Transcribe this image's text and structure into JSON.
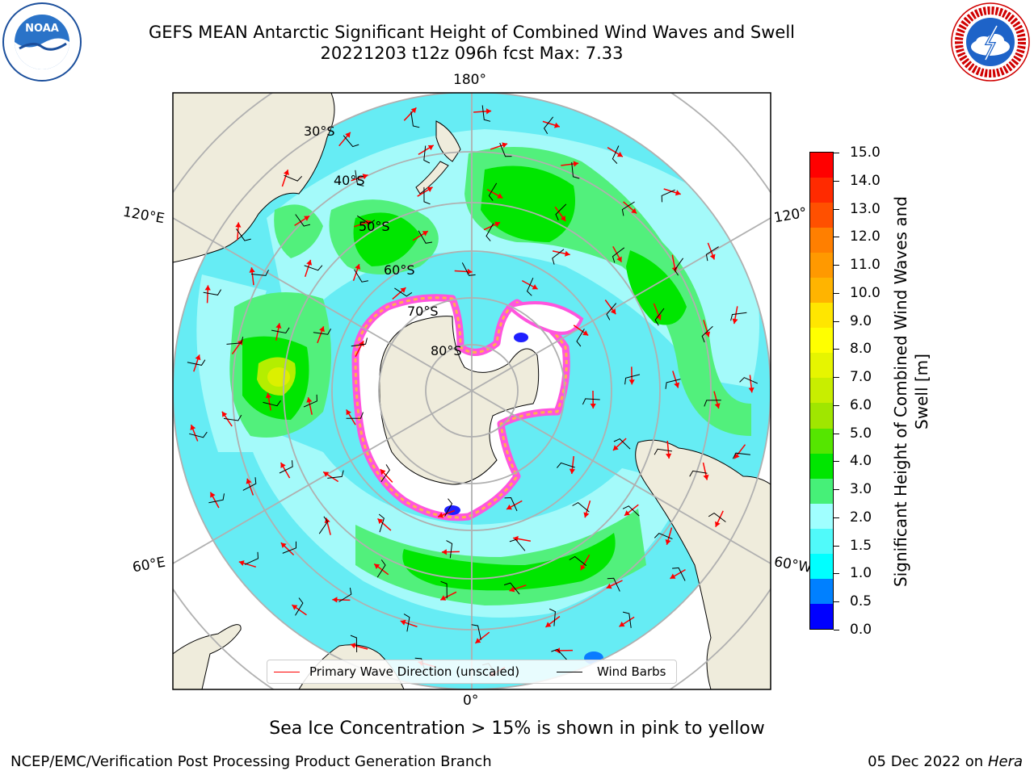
{
  "header": {
    "title_line1": "GEFS MEAN Antarctic Significant Height of Combined Wind Waves and Swell",
    "title_line2": "20221203 t12z 096h fcst   Max: 7.33"
  },
  "logos": {
    "noaa": {
      "text": "NOAA",
      "icon": "noaa-logo-icon"
    },
    "nws": {
      "text": "NATIONAL WEATHER SERVICE",
      "icon": "nws-logo-icon"
    }
  },
  "map": {
    "longitude_labels": {
      "top": "180°",
      "upper_left": "120°E",
      "upper_right": "120°",
      "lower_left": "60°E",
      "lower_right": "60°W",
      "bottom": "0°"
    },
    "latitude_labels": [
      "30°S",
      "40°S",
      "50°S",
      "60°S",
      "70°S",
      "80°S"
    ],
    "colors": {
      "land": "#efecdc",
      "ocean_outside": "#ffffff",
      "wave_direction_arrow": "#ff0000",
      "wind_barb": "#000000",
      "gridline": "#b0b0b0"
    }
  },
  "colorbar": {
    "title": "Significant Height of Combined Wind Waves and Swell [m]",
    "ticks": [
      "15.0",
      "14.0",
      "13.0",
      "12.0",
      "11.0",
      "10.0",
      "9.0",
      "8.0",
      "7.0",
      "6.0",
      "5.0",
      "4.0",
      "3.0",
      "2.0",
      "1.5",
      "1.0",
      "0.5",
      "0.0"
    ],
    "colors_top_to_bottom": [
      "#ff0000",
      "#ff2a00",
      "#ff5000",
      "#ff7f00",
      "#ff9900",
      "#ffb400",
      "#ffe600",
      "#ffff00",
      "#e6f500",
      "#c8ee00",
      "#a0e600",
      "#55e600",
      "#00e600",
      "#46f078",
      "#a0ffff",
      "#50fafa",
      "#00ffff",
      "#0080ff",
      "#0000ff"
    ]
  },
  "legend": {
    "primary_wave_direction": "Primary Wave Direction (unscaled)",
    "wind_barbs": "Wind Barbs"
  },
  "notes": {
    "sea_ice": "Sea Ice Concentration > 15% is shown in pink to yellow"
  },
  "footer": {
    "left": "NCEP/EMC/Verification Post Processing Product Generation Branch",
    "right_date": "05 Dec 2022 on",
    "right_host": "Hera"
  }
}
